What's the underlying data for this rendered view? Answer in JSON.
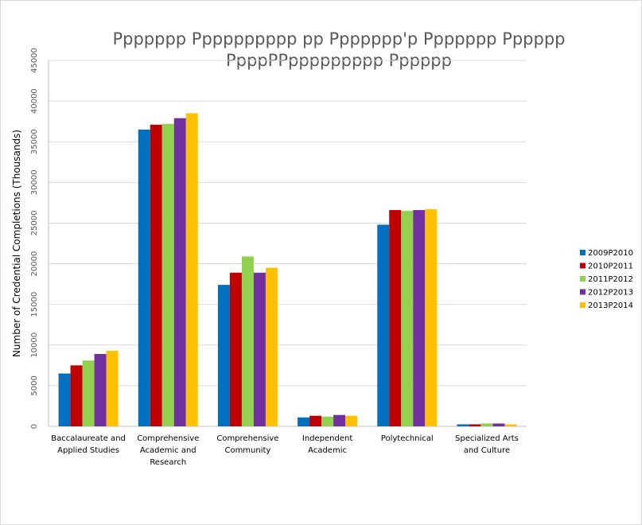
{
  "chart_data": {
    "type": "bar",
    "title_lines": [
      "Ppppppp Pppppppppp pp Ppppppp'p Ppppppp Pppppp",
      "PpppPPppppppppp Pppppp"
    ],
    "xlabel": "",
    "ylabel": "Number of Credential Completions (Thousands)",
    "ylim": [
      0,
      45000
    ],
    "yticks": [
      0,
      5000,
      10000,
      15000,
      20000,
      25000,
      30000,
      35000,
      40000,
      45000
    ],
    "grid": true,
    "legend_position": "right",
    "categories": [
      [
        "Baccalaureate and",
        "Applied Studies"
      ],
      [
        "Comprehensive",
        "Academic and",
        "Research"
      ],
      [
        "Comprehensive",
        "Community"
      ],
      [
        "Independent",
        "Academic"
      ],
      [
        "Polytechnical"
      ],
      [
        "Specialized Arts",
        "and Culture"
      ]
    ],
    "series": [
      {
        "name": "2009P2010",
        "color": "#0070C0",
        "values": [
          6500,
          36500,
          17400,
          1100,
          24800,
          250
        ]
      },
      {
        "name": "2010P2011",
        "color": "#C00000",
        "values": [
          7500,
          37100,
          18900,
          1300,
          26600,
          250
        ]
      },
      {
        "name": "2011P2012",
        "color": "#92D050",
        "values": [
          8100,
          37200,
          20900,
          1200,
          26500,
          350
        ]
      },
      {
        "name": "2012P2013",
        "color": "#7030A0",
        "values": [
          8900,
          37900,
          18900,
          1400,
          26600,
          350
        ]
      },
      {
        "name": "2013P2014",
        "color": "#FFC000",
        "values": [
          9300,
          38500,
          19500,
          1300,
          26700,
          250
        ]
      }
    ]
  }
}
